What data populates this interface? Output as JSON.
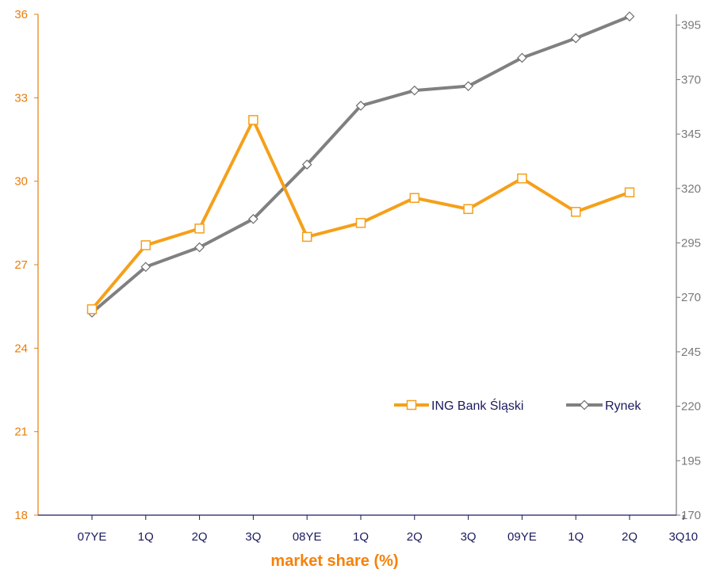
{
  "chart_data": {
    "type": "line",
    "xlabel": "market share (%)",
    "categories": [
      "07YE",
      "1Q",
      "2Q",
      "3Q",
      "08YE",
      "1Q",
      "2Q",
      "3Q",
      "09YE",
      "1Q",
      "2Q",
      "3Q10"
    ],
    "y_left": {
      "ticks": [
        18,
        21,
        24,
        27,
        30,
        33,
        36
      ],
      "ylim": [
        18,
        36
      ],
      "color": "#e87d0c"
    },
    "y_right": {
      "ticks": [
        170,
        195,
        220,
        245,
        270,
        295,
        320,
        345,
        370,
        395
      ],
      "ylim": [
        170,
        400
      ],
      "color": "#7a7a7a"
    },
    "series": [
      {
        "name": "ING Bank Śląski",
        "axis": "left",
        "color": "#f5a01a",
        "values": [
          25.4,
          27.7,
          28.3,
          32.2,
          28.0,
          28.5,
          29.4,
          29.0,
          30.1,
          28.9,
          29.6,
          null
        ]
      },
      {
        "name": "Rynek",
        "axis": "right",
        "color": "#808080",
        "values": [
          263,
          284,
          293,
          306,
          331,
          358,
          365,
          367,
          380,
          389,
          399,
          null
        ]
      }
    ],
    "legend": {
      "position": "right-middle"
    },
    "grid": false
  }
}
